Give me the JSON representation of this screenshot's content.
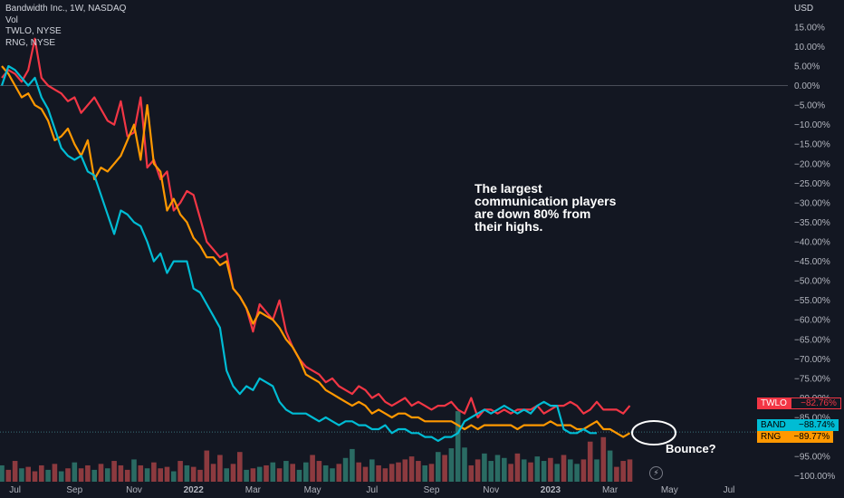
{
  "legend": {
    "main": "Bandwidth Inc., 1W, NASDAQ",
    "vol": "Vol",
    "comp1": "TWLO, NYSE",
    "comp2": "RNG, NYSE"
  },
  "currency": "USD",
  "annotation": {
    "lines": [
      "The largest",
      "communication players",
      "are down 80% from",
      "their highs."
    ]
  },
  "bounce_text": "Bounce?",
  "tags": [
    {
      "symbol": "TWLO",
      "value": "−82.76%",
      "color": "#f23645",
      "text_color": "#f23645"
    },
    {
      "symbol": "BAND",
      "value": "−88.74%",
      "color": "#00bcd4",
      "text_color": "#000000"
    },
    {
      "symbol": "RNG",
      "value": "−89.77%",
      "color": "#ff9800",
      "text_color": "#000000"
    }
  ],
  "lightning_icon": "lightning-icon",
  "chart_data": {
    "type": "line",
    "y_axis_side": "right",
    "y_unit": "percent change",
    "ylim": [
      -101,
      21
    ],
    "y_ticks": [
      "15.00%",
      "10.00%",
      "5.00%",
      "0.00%",
      "−5.00%",
      "−10.00%",
      "−15.00%",
      "−20.00%",
      "−25.00%",
      "−30.00%",
      "−35.00%",
      "−40.00%",
      "−45.00%",
      "−50.00%",
      "−55.00%",
      "−60.00%",
      "−65.00%",
      "−70.00%",
      "−75.00%",
      "−80.00%",
      "−85.00%",
      "−95.00%",
      "−100.00%"
    ],
    "y_tick_values": [
      15,
      10,
      5,
      0,
      -5,
      -10,
      -15,
      -20,
      -25,
      -30,
      -35,
      -40,
      -45,
      -50,
      -55,
      -60,
      -65,
      -70,
      -75,
      -80,
      -85,
      -95,
      -100
    ],
    "x_ticks": [
      {
        "label": "Jul",
        "week": 2,
        "bold": false
      },
      {
        "label": "Sep",
        "week": 11,
        "bold": false
      },
      {
        "label": "Nov",
        "week": 20,
        "bold": false
      },
      {
        "label": "2022",
        "week": 29,
        "bold": true
      },
      {
        "label": "Mar",
        "week": 38,
        "bold": false
      },
      {
        "label": "May",
        "week": 47,
        "bold": false
      },
      {
        "label": "Jul",
        "week": 56,
        "bold": false
      },
      {
        "label": "Sep",
        "week": 65,
        "bold": false
      },
      {
        "label": "Nov",
        "week": 74,
        "bold": false
      },
      {
        "label": "2023",
        "week": 83,
        "bold": true
      },
      {
        "label": "Mar",
        "week": 92,
        "bold": false
      },
      {
        "label": "May",
        "week": 101,
        "bold": false
      },
      {
        "label": "Jul",
        "week": 110,
        "bold": false
      }
    ],
    "series": [
      {
        "name": "TWLO",
        "color": "#f23645",
        "values": [
          2,
          4,
          3,
          1,
          4,
          12,
          2,
          0,
          -1,
          -2,
          -4,
          -3,
          -7,
          -5,
          -3,
          -6,
          -9,
          -10,
          -4,
          -13,
          -12,
          -3,
          -21,
          -19,
          -24,
          -22,
          -32,
          -30,
          -27,
          -28,
          -34,
          -40,
          -42,
          -44,
          -43,
          -52,
          -54,
          -57,
          -63,
          -56,
          -58,
          -60,
          -55,
          -63,
          -67,
          -70,
          -72,
          -73,
          -74,
          -76,
          -75,
          -77,
          -78,
          -79,
          -77,
          -78,
          -80,
          -79,
          -81,
          -82,
          -81,
          -80,
          -82,
          -81,
          -82,
          -83,
          -82,
          -82,
          -81,
          -83,
          -84,
          -80,
          -85,
          -83,
          -83,
          -84,
          -83,
          -84,
          -83,
          -83,
          -83,
          -82,
          -84,
          -83,
          -82,
          -82,
          -81,
          -82,
          -84,
          -83,
          -81,
          -83,
          -83,
          -83,
          -84,
          -82
        ]
      },
      {
        "name": "RNG",
        "color": "#ff9800",
        "values": [
          5,
          3,
          0,
          -3,
          -2,
          -5,
          -6,
          -9,
          -14,
          -13,
          -11,
          -15,
          -18,
          -14,
          -24,
          -21,
          -22,
          -20,
          -18,
          -14,
          -10,
          -19,
          -5,
          -20,
          -22,
          -32,
          -29,
          -33,
          -35,
          -39,
          -41,
          -44,
          -44,
          -46,
          -45,
          -52,
          -54,
          -57,
          -61,
          -58,
          -59,
          -60,
          -62,
          -65,
          -67,
          -70,
          -74,
          -75,
          -76,
          -78,
          -79,
          -80,
          -81,
          -82,
          -81,
          -82,
          -84,
          -83,
          -84,
          -85,
          -84,
          -84,
          -85,
          -85,
          -86,
          -86,
          -86,
          -86,
          -86,
          -87,
          -88,
          -87,
          -88,
          -87,
          -87,
          -87,
          -87,
          -87,
          -88,
          -87,
          -87,
          -87,
          -87,
          -86,
          -87,
          -87,
          -87,
          -88,
          -88,
          -87,
          -86,
          -88,
          -88,
          -89,
          -90,
          -89
        ]
      },
      {
        "name": "BAND",
        "color": "#00bcd4",
        "values": [
          0,
          5,
          4,
          2,
          0,
          2,
          -3,
          -6,
          -11,
          -16,
          -18,
          -19,
          -18,
          -22,
          -23,
          -28,
          -33,
          -38,
          -32,
          -33,
          -35,
          -36,
          -40,
          -45,
          -43,
          -48,
          -45,
          -45,
          -45,
          -52,
          -53,
          -56,
          -59,
          -62,
          -73,
          -77,
          -79,
          -77,
          -78,
          -75,
          -76,
          -77,
          -81,
          -83,
          -84,
          -84,
          -84,
          -85,
          -86,
          -85,
          -86,
          -87,
          -86,
          -86,
          -87,
          -87,
          -88,
          -88,
          -87,
          -89,
          -88,
          -88,
          -89,
          -89,
          -90,
          -90,
          -91,
          -90,
          -90,
          -89,
          -86,
          -85,
          -84,
          -83,
          -84,
          -83,
          -82,
          -83,
          -84,
          -83,
          -84,
          -82,
          -81,
          -82,
          -82,
          -88,
          -89,
          -89,
          -88,
          -89,
          -89
        ]
      }
    ],
    "volume": {
      "up_color": "#2a6b63",
      "down_color": "#8c3a3f",
      "values": [
        22,
        16,
        28,
        18,
        20,
        14,
        22,
        16,
        24,
        14,
        18,
        26,
        18,
        22,
        16,
        24,
        18,
        28,
        22,
        16,
        30,
        22,
        18,
        26,
        18,
        20,
        14,
        28,
        22,
        20,
        16,
        42,
        24,
        36,
        18,
        24,
        40,
        16,
        18,
        20,
        22,
        26,
        18,
        28,
        24,
        16,
        26,
        36,
        28,
        22,
        18,
        24,
        32,
        44,
        26,
        20,
        30,
        22,
        18,
        24,
        26,
        30,
        34,
        28,
        22,
        24,
        40,
        36,
        45,
        95,
        46,
        22,
        30,
        38,
        28,
        36,
        32,
        24,
        38,
        30,
        26,
        34,
        28,
        32,
        24,
        36,
        30,
        24,
        30,
        54,
        30,
        60,
        42,
        20,
        28,
        30
      ],
      "up": [
        true,
        false,
        false,
        true,
        false,
        false,
        false,
        true,
        false,
        true,
        false,
        true,
        false,
        false,
        true,
        false,
        true,
        false,
        false,
        false,
        true,
        false,
        true,
        false,
        false,
        false,
        true,
        false,
        true,
        false,
        false,
        false,
        false,
        false,
        true,
        false,
        false,
        true,
        false,
        true,
        false,
        true,
        false,
        true,
        false,
        true,
        true,
        false,
        false,
        true,
        true,
        false,
        true,
        true,
        false,
        false,
        true,
        false,
        false,
        false,
        false,
        false,
        false,
        false,
        true,
        false,
        true,
        false,
        true,
        true,
        true,
        false,
        false,
        true,
        true,
        true,
        true,
        false,
        false,
        true,
        false,
        true,
        true,
        false,
        true,
        false,
        true,
        true,
        false,
        false,
        true,
        false,
        true,
        false,
        false,
        false
      ]
    }
  }
}
